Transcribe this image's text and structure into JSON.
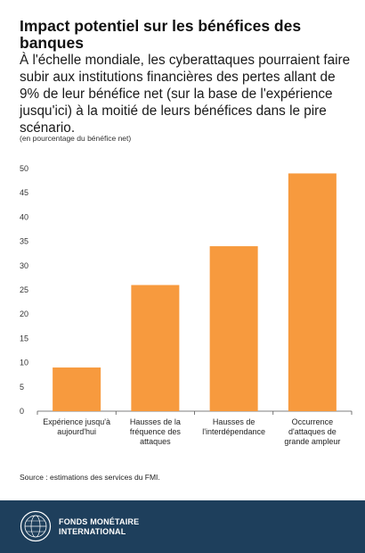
{
  "header": {
    "title": "Impact potentiel sur les bénéfices des banques",
    "subtitle": "À l'échelle mondiale, les cyberattaques pourraient faire subir aux institutions financières des pertes allant de 9% de leur bénéfice net (sur la base de l'expérience jusqu'ici) à la moitié de leurs bénéfices dans le pire scénario.",
    "unit_note": "(en pourcentage du bénéfice net)"
  },
  "chart_data": {
    "type": "bar",
    "categories": [
      [
        "Expérience jusqu'à",
        "aujourd'hui"
      ],
      [
        "Hausses de la",
        "fréquence des",
        "attaques"
      ],
      [
        "Hausses de",
        "l'interdépendance"
      ],
      [
        "Occurrence",
        "d'attaques de",
        "grande ampleur"
      ]
    ],
    "values": [
      9,
      26,
      34,
      49
    ],
    "ylim": [
      0,
      50
    ],
    "yticks": [
      0,
      5,
      10,
      15,
      20,
      25,
      30,
      35,
      40,
      45,
      50
    ],
    "grid": false,
    "bar_color": "#f79a3e",
    "xlabel": "",
    "ylabel": ""
  },
  "source": "Source : estimations des services du FMI.",
  "footer": {
    "org_line1": "FONDS MONÉTAIRE",
    "org_line2": "INTERNATIONAL",
    "logo_icon": "imf-seal-icon",
    "background": "#1e3f5c"
  }
}
